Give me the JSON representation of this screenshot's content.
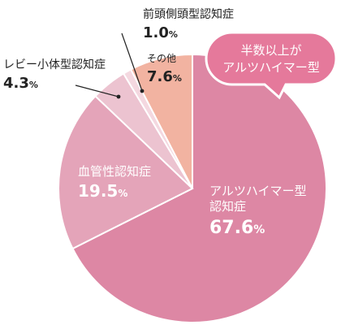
{
  "chart_data": {
    "type": "pie",
    "start_angle_deg": 0,
    "direction": "clockwise",
    "slices": [
      {
        "key": "alz",
        "name_lines": [
          "アルツハイマー型",
          "認知症"
        ],
        "value": 67.6,
        "color": "#dd87a4"
      },
      {
        "key": "vas",
        "name_lines": [
          "血管性認知症"
        ],
        "value": 19.5,
        "color": "#e4a4b9"
      },
      {
        "key": "lewy",
        "name_lines": [
          "レビー小体型認知症"
        ],
        "value": 4.3,
        "color": "#ecc3d0"
      },
      {
        "key": "ftd",
        "name_lines": [
          "前頭側頭型認知症"
        ],
        "value": 1.0,
        "color": "#f4d8e0"
      },
      {
        "key": "other",
        "name_lines": [
          "その他"
        ],
        "value": 7.6,
        "color": "#f2b3a1"
      }
    ],
    "value_format": {
      "decimals": 1,
      "unit": "%"
    },
    "annotation": {
      "lines": [
        "半数以上が",
        "アルツハイマー型"
      ],
      "fill": "#e5799b"
    },
    "leader_color": "#222222"
  }
}
